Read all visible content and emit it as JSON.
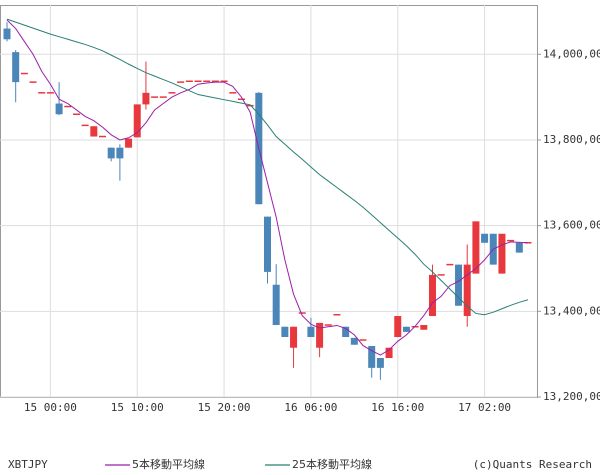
{
  "chart_data": {
    "type": "candlestick",
    "symbol": "XBTJPY",
    "copyright": "(c)Quants Research",
    "up_color": "#e8383d",
    "down_color": "#4a86b8",
    "grid": true,
    "categories": [
      null,
      null,
      null,
      null,
      null,
      "15 00:00",
      null,
      null,
      null,
      null,
      null,
      null,
      null,
      null,
      null,
      "15 10:00",
      null,
      null,
      null,
      null,
      null,
      null,
      null,
      null,
      null,
      "15 20:00",
      null,
      null,
      null,
      null,
      null,
      null,
      null,
      null,
      null,
      "16 06:00",
      null,
      null,
      null,
      null,
      null,
      null,
      null,
      null,
      null,
      "16 16:00",
      null,
      null,
      null,
      null,
      null,
      null,
      null,
      null,
      null,
      "17 02:00",
      null,
      null,
      null,
      null,
      null
    ],
    "open": [
      14060,
      14005,
      13955,
      13935,
      13910,
      13910,
      13885,
      13878,
      13860,
      13834,
      13808,
      13808,
      13782,
      13782,
      13782,
      13806,
      13883,
      13900,
      13900,
      13910,
      13935,
      13937,
      13937,
      13937,
      13937,
      13937,
      13910,
      13895,
      13880,
      13910,
      13621,
      13462,
      13364,
      13315,
      13396,
      13364,
      13315,
      13368,
      13392,
      13364,
      13338,
      13333,
      13319,
      13291,
      13291,
      13340,
      13364,
      13364,
      13357,
      13389,
      13485,
      13509,
      13509,
      13389,
      13488,
      13581,
      13581,
      13488,
      13565,
      13560,
      13560
    ],
    "high": [
      14075,
      14010,
      13955,
      13935,
      13910,
      13910,
      13935,
      13878,
      13860,
      13834,
      13832,
      13808,
      13782,
      13790,
      13803,
      13883,
      13983,
      13900,
      13900,
      13910,
      13935,
      13937,
      13937,
      13937,
      13937,
      13937,
      13910,
      13895,
      13880,
      13912,
      13621,
      13510,
      13364,
      13364,
      13396,
      13385,
      13373,
      13368,
      13392,
      13364,
      13338,
      13333,
      13319,
      13291,
      13315,
      13389,
      13364,
      13364,
      13368,
      13509,
      13485,
      13509,
      13509,
      13556,
      13610,
      13581,
      13581,
      13581,
      13565,
      13560,
      13560
    ],
    "low": [
      14030,
      13888,
      13955,
      13935,
      13910,
      13910,
      13858,
      13878,
      13860,
      13834,
      13808,
      13808,
      13750,
      13705,
      13782,
      13806,
      13871,
      13900,
      13900,
      13910,
      13935,
      13937,
      13937,
      13937,
      13937,
      13937,
      13910,
      13895,
      13880,
      13650,
      13465,
      13368,
      13340,
      13268,
      13396,
      13340,
      13293,
      13368,
      13392,
      13340,
      13322,
      13333,
      13245,
      13240,
      13291,
      13340,
      13352,
      13364,
      13357,
      13389,
      13485,
      13509,
      13413,
      13364,
      13488,
      13560,
      13509,
      13488,
      13565,
      13537,
      13560
    ],
    "close": [
      14035,
      13935,
      13955,
      13935,
      13910,
      13910,
      13860,
      13878,
      13860,
      13834,
      13832,
      13808,
      13757,
      13757,
      13803,
      13883,
      13910,
      13900,
      13900,
      13910,
      13935,
      13937,
      13937,
      13937,
      13937,
      13937,
      13910,
      13895,
      13880,
      13650,
      13492,
      13368,
      13340,
      13364,
      13396,
      13340,
      13373,
      13368,
      13392,
      13340,
      13322,
      13333,
      13268,
      13268,
      13315,
      13389,
      13352,
      13364,
      13368,
      13485,
      13485,
      13509,
      13413,
      13509,
      13610,
      13560,
      13509,
      13581,
      13565,
      13537,
      13560
    ],
    "series": [
      {
        "name": "5本移動平均線",
        "color": "#9b1fa8",
        "values": [
          14080,
          14060,
          14030,
          14000,
          13960,
          13930,
          13895,
          13885,
          13870,
          13855,
          13845,
          13830,
          13812,
          13800,
          13805,
          13817,
          13840,
          13870,
          13885,
          13900,
          13910,
          13918,
          13930,
          13933,
          13935,
          13935,
          13925,
          13900,
          13865,
          13780,
          13700,
          13620,
          13520,
          13440,
          13390,
          13370,
          13361,
          13364,
          13367,
          13360,
          13345,
          13320,
          13308,
          13298,
          13310,
          13330,
          13345,
          13365,
          13390,
          13420,
          13435,
          13460,
          13470,
          13485,
          13500,
          13520,
          13545,
          13555,
          13562,
          13561,
          13560
        ]
      },
      {
        "name": "25本移動平均線",
        "color": "#2a7f72",
        "values": [
          14082,
          14075,
          14068,
          14061,
          14054,
          14047,
          14041,
          14035,
          14029,
          14023,
          14016,
          14008,
          13998,
          13988,
          13977,
          13967,
          13957,
          13949,
          13941,
          13933,
          13924,
          13915,
          13906,
          13902,
          13898,
          13894,
          13890,
          13886,
          13882,
          13860,
          13835,
          13808,
          13790,
          13772,
          13755,
          13737,
          13719,
          13704,
          13689,
          13674,
          13659,
          13643,
          13625,
          13607,
          13589,
          13571,
          13553,
          13533,
          13510,
          13492,
          13472,
          13452,
          13432,
          13412,
          13395,
          13392,
          13398,
          13406,
          13414,
          13421,
          13427
        ]
      }
    ],
    "ylim": [
      13200,
      14115
    ],
    "yticks": [
      {
        "value": 13200,
        "label": "13,200,00"
      },
      {
        "value": 13400,
        "label": "13,400,00"
      },
      {
        "value": 13600,
        "label": "13,600,00"
      },
      {
        "value": 13800,
        "label": "13,800,00"
      },
      {
        "value": 14000,
        "label": "14,000,00"
      }
    ]
  }
}
